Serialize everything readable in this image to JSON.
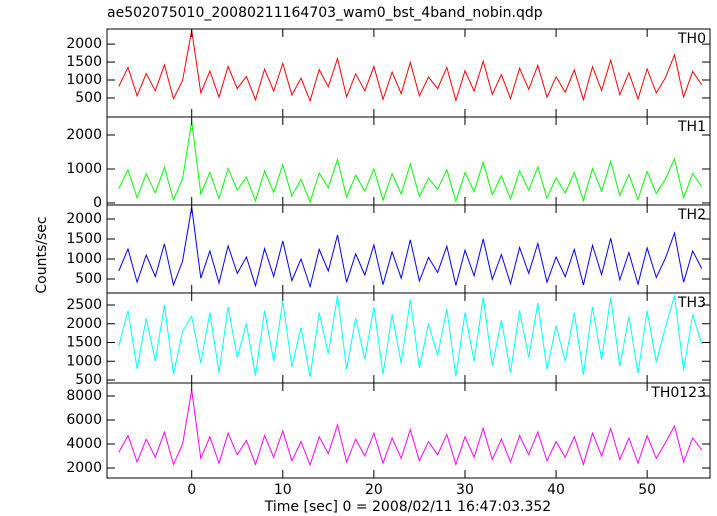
{
  "chart_data": {
    "type": "line",
    "title": "ae502075010_20080211164703_wam0_bst_4band_nobin.qdp",
    "x_label": "Time [sec] 0 = 2008/02/11 16:47:03.352",
    "y_label": "Counts/sec",
    "xlim": [
      -9.3,
      56.9
    ],
    "xticks": [
      0,
      10,
      20,
      30,
      40,
      50
    ],
    "x": [
      -8,
      -7,
      -6,
      -5,
      -4,
      -3,
      -2,
      -1,
      0,
      1,
      2,
      3,
      4,
      5,
      6,
      7,
      8,
      9,
      10,
      11,
      12,
      13,
      14,
      15,
      16,
      17,
      18,
      19,
      20,
      21,
      22,
      23,
      24,
      25,
      26,
      27,
      28,
      29,
      30,
      31,
      32,
      33,
      34,
      35,
      36,
      37,
      38,
      39,
      40,
      41,
      42,
      43,
      44,
      45,
      46,
      47,
      48,
      49,
      50,
      51,
      52,
      53,
      54,
      55,
      56
    ],
    "panels": [
      {
        "name": "TH0",
        "color": "#ff0000",
        "ylim": [
          -30,
          2420
        ],
        "yticks": [
          500,
          1000,
          1500,
          2000
        ],
        "values": [
          820,
          1350,
          560,
          1180,
          700,
          1420,
          480,
          990,
          2380,
          640,
          1250,
          520,
          1380,
          760,
          1100,
          450,
          1300,
          690,
          1460,
          580,
          1050,
          420,
          1290,
          810,
          1600,
          530,
          1170,
          700,
          1380,
          460,
          1220,
          620,
          1490,
          560,
          1080,
          760,
          1350,
          430,
          1260,
          690,
          1520,
          600,
          1150,
          480,
          1330,
          740,
          1410,
          520,
          1090,
          660,
          1280,
          450,
          1370,
          710,
          1550,
          590,
          1200,
          470,
          1310,
          640,
          1060,
          1700,
          520,
          1240,
          860
        ]
      },
      {
        "name": "TH1",
        "color": "#00ff00",
        "ylim": [
          -60,
          2530
        ],
        "yticks": [
          0,
          1000,
          2000
        ],
        "values": [
          420,
          980,
          150,
          860,
          300,
          1050,
          90,
          720,
          2400,
          260,
          900,
          120,
          1010,
          380,
          760,
          60,
          940,
          310,
          1120,
          200,
          700,
          30,
          880,
          450,
          1280,
          170,
          820,
          350,
          1000,
          80,
          860,
          260,
          1150,
          190,
          730,
          400,
          980,
          50,
          890,
          330,
          1200,
          240,
          800,
          110,
          950,
          370,
          1060,
          140,
          740,
          290,
          900,
          70,
          1010,
          350,
          1230,
          220,
          840,
          100,
          930,
          280,
          700,
          1300,
          150,
          870,
          480
        ]
      },
      {
        "name": "TH2",
        "color": "#0000ff",
        "ylim": [
          150,
          2350
        ],
        "yticks": [
          500,
          1000,
          1500,
          2000
        ],
        "values": [
          700,
          1250,
          420,
          1100,
          560,
          1380,
          350,
          950,
          2300,
          520,
          1200,
          400,
          1330,
          640,
          1050,
          330,
          1260,
          560,
          1450,
          460,
          1000,
          310,
          1240,
          700,
          1600,
          420,
          1130,
          600,
          1350,
          360,
          1180,
          520,
          1480,
          450,
          1040,
          660,
          1320,
          340,
          1220,
          580,
          1500,
          490,
          1110,
          380,
          1290,
          640,
          1390,
          420,
          1050,
          560,
          1240,
          350,
          1340,
          610,
          1520,
          480,
          1160,
          370,
          1280,
          540,
          1020,
          1650,
          420,
          1200,
          760
        ]
      },
      {
        "name": "TH3",
        "color": "#00ffff",
        "ylim": [
          420,
          2820
        ],
        "yticks": [
          500,
          1000,
          1500,
          2000,
          2500
        ],
        "values": [
          1400,
          2350,
          800,
          2150,
          1000,
          2500,
          650,
          1800,
          2200,
          950,
          2300,
          700,
          2450,
          1100,
          2000,
          620,
          2350,
          1000,
          2600,
          850,
          1900,
          580,
          2300,
          1200,
          2750,
          780,
          2150,
          1050,
          2450,
          650,
          2250,
          950,
          2650,
          820,
          2000,
          1150,
          2400,
          600,
          2300,
          1000,
          2700,
          880,
          2100,
          700,
          2350,
          1100,
          2550,
          780,
          1950,
          1000,
          2300,
          640,
          2450,
          1050,
          2700,
          860,
          2200,
          680,
          2350,
          980,
          1900,
          2750,
          760,
          2250,
          1450
        ]
      },
      {
        "name": "TH0123",
        "color": "#ff00ff",
        "ylim": [
          1170,
          9080
        ],
        "yticks": [
          2000,
          4000,
          6000,
          8000
        ],
        "values": [
          3300,
          4700,
          2500,
          4400,
          2900,
          5000,
          2300,
          4000,
          8500,
          2800,
          4600,
          2400,
          4900,
          3100,
          4300,
          2300,
          4700,
          2900,
          5100,
          2600,
          4200,
          2250,
          4600,
          3200,
          5600,
          2500,
          4400,
          3000,
          4900,
          2400,
          4500,
          2800,
          5200,
          2600,
          4200,
          3100,
          4800,
          2300,
          4600,
          2900,
          5300,
          2700,
          4400,
          2500,
          4700,
          3100,
          5000,
          2600,
          4200,
          2900,
          4600,
          2300,
          4900,
          3000,
          5300,
          2700,
          4500,
          2400,
          4700,
          2800,
          4100,
          5500,
          2500,
          4500,
          3500
        ]
      }
    ]
  }
}
